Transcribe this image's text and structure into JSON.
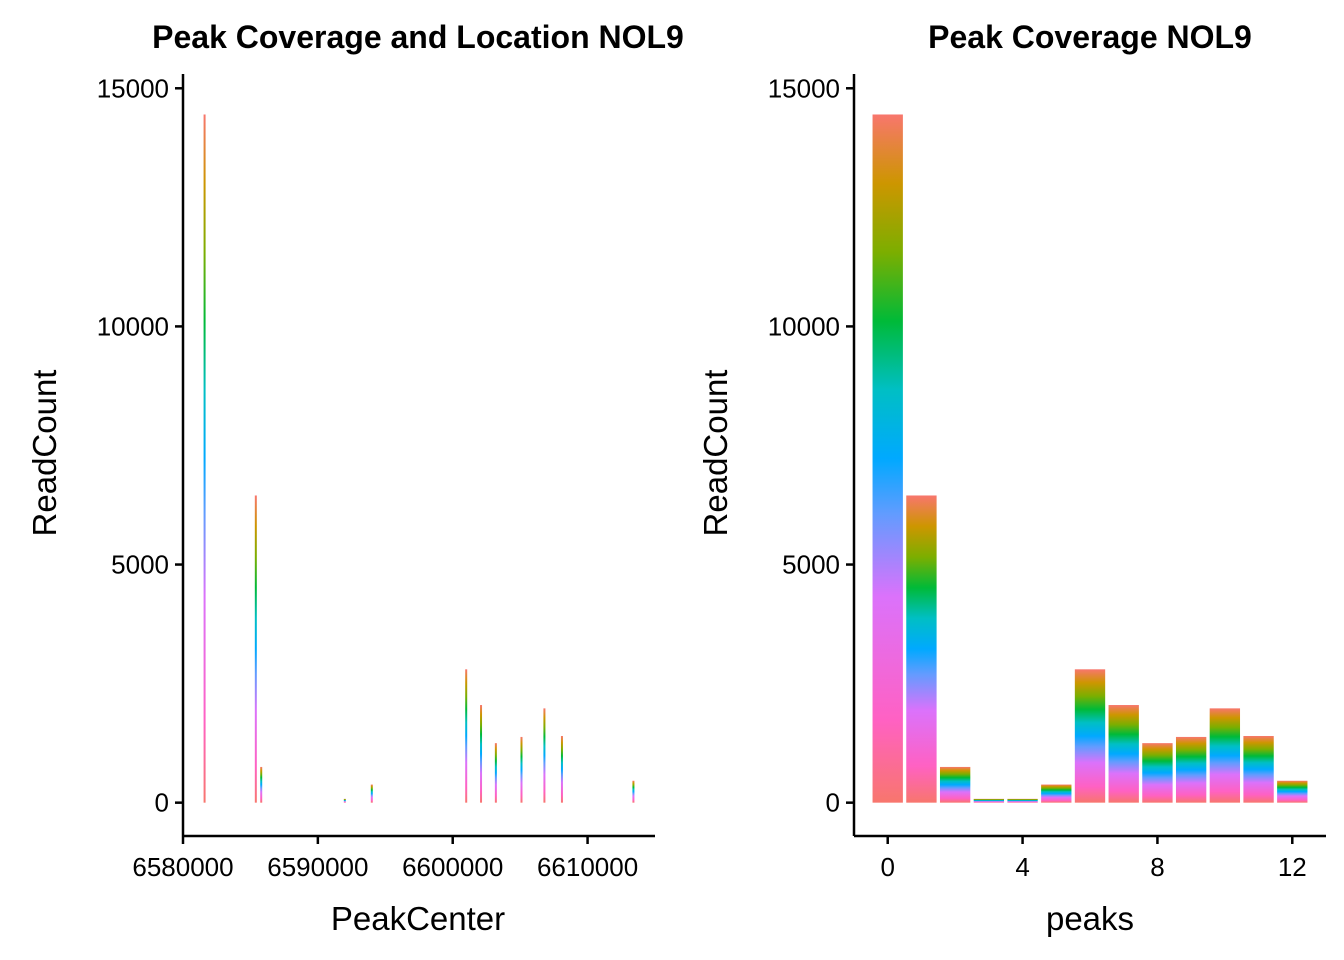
{
  "charts": [
    {
      "title": "Peak Coverage and Location NOL9",
      "xlabel": "PeakCenter",
      "ylabel": "ReadCount",
      "x_ticks": [
        "6580000",
        "6590000",
        "6600000",
        "6610000"
      ],
      "y_ticks": [
        "0",
        "5000",
        "10000",
        "15000"
      ]
    },
    {
      "title": "Peak Coverage NOL9",
      "xlabel": "peaks",
      "ylabel": "ReadCount",
      "x_ticks": [
        "0",
        "4",
        "8",
        "12"
      ],
      "y_ticks": [
        "0",
        "5000",
        "10000",
        "15000"
      ]
    }
  ],
  "chart_data": [
    {
      "type": "bar",
      "title": "Peak Coverage and Location NOL9",
      "xlabel": "PeakCenter",
      "ylabel": "ReadCount",
      "xlim": [
        6580000,
        6615000
      ],
      "ylim": [
        -700,
        15300
      ],
      "x_ticks": [
        6580000,
        6590000,
        6600000,
        6610000
      ],
      "y_ticks": [
        0,
        5000,
        10000,
        15000
      ],
      "fill": "gradient stacked segments (pink to red)",
      "bars": [
        {
          "x": 6581600,
          "y": 14450
        },
        {
          "x": 6585400,
          "y": 6450
        },
        {
          "x": 6585800,
          "y": 750
        },
        {
          "x": 6592000,
          "y": 80
        },
        {
          "x": 6594000,
          "y": 380
        },
        {
          "x": 6601000,
          "y": 2800
        },
        {
          "x": 6602100,
          "y": 2050
        },
        {
          "x": 6603200,
          "y": 1250
        },
        {
          "x": 6605100,
          "y": 1380
        },
        {
          "x": 6606800,
          "y": 1980
        },
        {
          "x": 6608100,
          "y": 1400
        },
        {
          "x": 6613400,
          "y": 460
        }
      ]
    },
    {
      "type": "bar",
      "title": "Peak Coverage NOL9",
      "xlabel": "peaks",
      "ylabel": "ReadCount",
      "xlim": [
        -1.0,
        13.0
      ],
      "ylim": [
        -700,
        15300
      ],
      "x_ticks": [
        0,
        4,
        8,
        12
      ],
      "y_ticks": [
        0,
        5000,
        10000,
        15000
      ],
      "fill": "gradient stacked segments (pink to red)",
      "categories": [
        0,
        1,
        2,
        3,
        4,
        5,
        6,
        7,
        8,
        9,
        10,
        11,
        12
      ],
      "values": [
        14450,
        6450,
        750,
        80,
        80,
        380,
        2800,
        2050,
        1250,
        1380,
        1980,
        1400,
        460
      ]
    }
  ]
}
